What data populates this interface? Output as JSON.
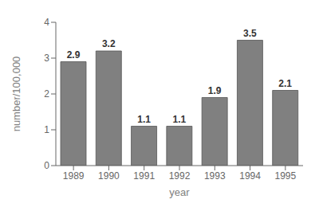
{
  "chart_data": {
    "type": "bar",
    "categories": [
      "1989",
      "1990",
      "1991",
      "1992",
      "1993",
      "1994",
      "1995"
    ],
    "values": [
      2.9,
      3.2,
      1.1,
      1.1,
      1.9,
      3.5,
      2.1
    ],
    "color": "#808080",
    "xlabel": "year",
    "ylabel": "number/100,000",
    "ylim": [
      0,
      4
    ],
    "yticks": [
      0,
      1,
      2,
      3,
      4
    ],
    "grid": false,
    "data_labels": true
  }
}
